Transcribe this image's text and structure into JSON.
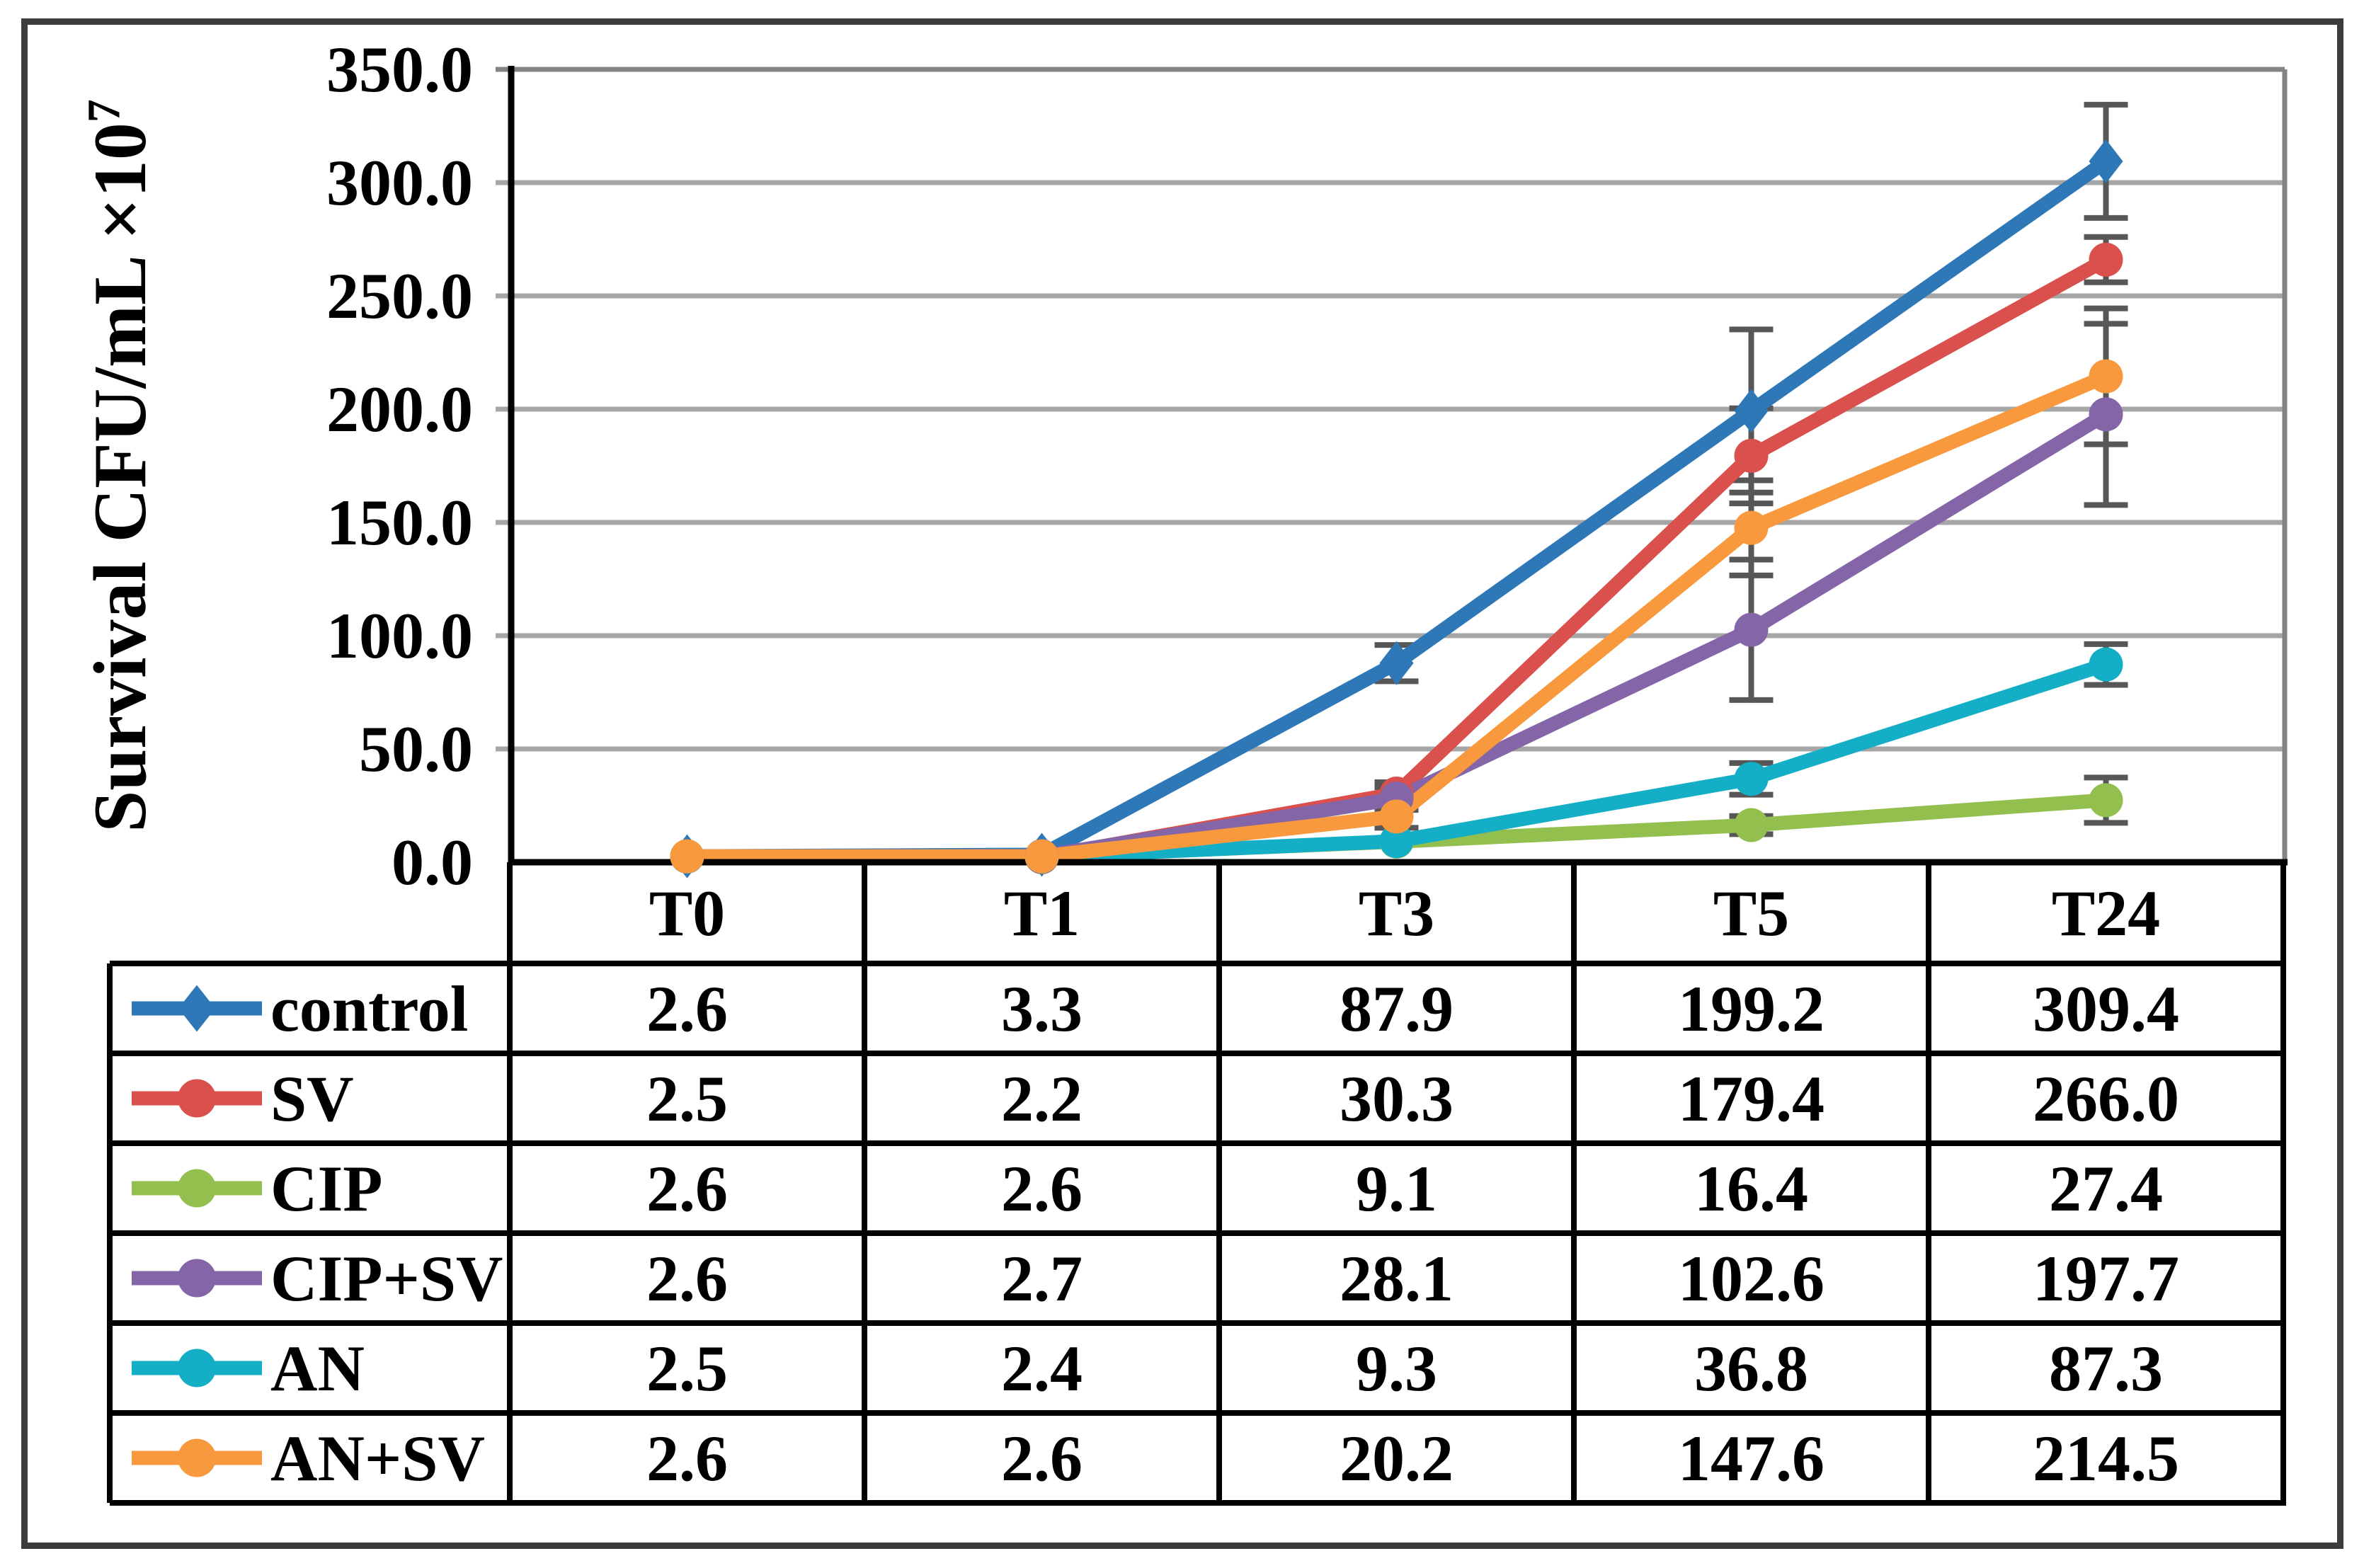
{
  "figure": {
    "background_color": "#ffffff",
    "outer_border_color": "#3c3c3c"
  },
  "chart_data": {
    "type": "line",
    "title": "",
    "xlabel": "",
    "ylabel_main": "Survival CFU/mL ×10",
    "ylabel_superscript": "7",
    "ylim": [
      0,
      350
    ],
    "y_tick_step": 50,
    "y_tick_labels": [
      "350.0",
      "300.0",
      "250.0",
      "200.0",
      "150.0",
      "100.0",
      "50.0",
      "0.0"
    ],
    "grid": true,
    "gridline_color": "#a6a6a6",
    "plot_frame_color": "#848484",
    "axis_color": "#000000",
    "error_bar_color": "#575757",
    "legend_position": "data-table-left-column",
    "categories": [
      "T0",
      "T1",
      "T3",
      "T5",
      "T24"
    ],
    "series": [
      {
        "name": "control",
        "color": "#2e78b8",
        "marker": "diamond",
        "values": [
          2.6,
          3.3,
          87.9,
          199.2,
          309.4
        ],
        "display": [
          "2.6",
          "3.3",
          "87.9",
          "199.2",
          "309.4"
        ],
        "errors": [
          0,
          0,
          8,
          36,
          25
        ]
      },
      {
        "name": "SV",
        "color": "#d9504c",
        "marker": "circle",
        "values": [
          2.5,
          2.2,
          30.3,
          179.4,
          266.0
        ],
        "display": [
          "2.5",
          "2.2",
          "30.3",
          "179.4",
          "266.0"
        ],
        "errors": [
          0,
          0,
          5,
          21,
          10
        ]
      },
      {
        "name": "CIP",
        "color": "#93bf4f",
        "marker": "circle",
        "values": [
          2.6,
          2.6,
          9.1,
          16.4,
          27.4
        ],
        "display": [
          "2.6",
          "2.6",
          "9.1",
          "16.4",
          "27.4"
        ],
        "errors": [
          0,
          0,
          0,
          4,
          10
        ]
      },
      {
        "name": "CIP+SV",
        "color": "#8465a8",
        "marker": "circle",
        "values": [
          2.6,
          2.7,
          28.1,
          102.6,
          197.7
        ],
        "display": [
          "2.6",
          "2.7",
          "28.1",
          "102.6",
          "197.7"
        ],
        "errors": [
          0,
          0,
          5,
          31,
          40
        ]
      },
      {
        "name": "AN",
        "color": "#15aec7",
        "marker": "circle",
        "values": [
          2.5,
          2.4,
          9.3,
          36.8,
          87.3
        ],
        "display": [
          "2.5",
          "2.4",
          "9.3",
          "36.8",
          "87.3"
        ],
        "errors": [
          0,
          0,
          0,
          7,
          9
        ]
      },
      {
        "name": "AN+SV",
        "color": "#f8993d",
        "marker": "circle",
        "values": [
          2.6,
          2.6,
          20.2,
          147.6,
          214.5
        ],
        "display": [
          "2.6",
          "2.6",
          "20.2",
          "147.6",
          "214.5"
        ],
        "errors": [
          0,
          0,
          5,
          21,
          30
        ]
      }
    ]
  }
}
